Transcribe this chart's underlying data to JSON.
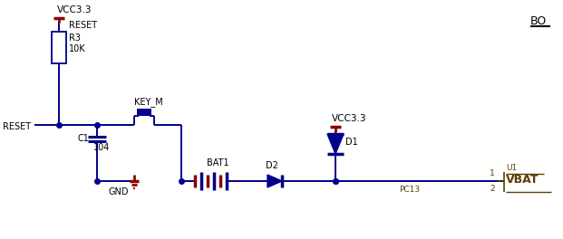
{
  "bg_color": "#ffffff",
  "wire_color": "#00008B",
  "dark_red": "#8B0000",
  "text_color_dark": "#5a4000",
  "labels": {
    "VCC3_3_top": "VCC3.3",
    "VCC3_3_mid": "VCC3.3",
    "R3": "R3",
    "R3_val": "10K",
    "RESET_label": "RESET",
    "RESET_pin": "RESET",
    "KEY_M": "KEY_M",
    "C1": "C1",
    "C1_val": "104",
    "GND": "GND",
    "BAT1": "BAT1",
    "D1": "D1",
    "D2": "D2",
    "BO": "BO",
    "U1": "U1",
    "VBAT": "VBAT",
    "PC13": "PC13",
    "pin1": "1",
    "pin2": "2"
  },
  "figsize": [
    6.21,
    2.64
  ],
  "dpi": 100
}
